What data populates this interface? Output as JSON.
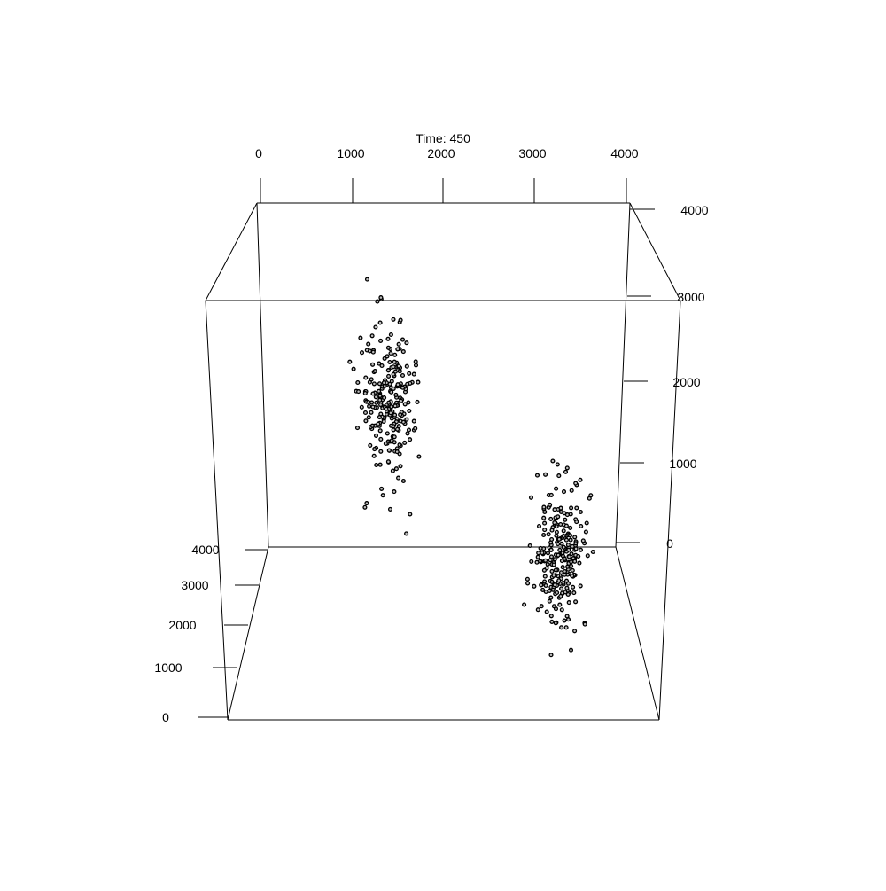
{
  "chart_data": {
    "type": "scatter",
    "title": "Time: 450",
    "xlabel": "",
    "ylabel": "",
    "zlabel": "",
    "axes": {
      "top": {
        "ticks": [
          "0",
          "1000",
          "2000",
          "3000",
          "4000"
        ]
      },
      "right": {
        "ticks": [
          "4000",
          "3000",
          "2000",
          "1000",
          "0"
        ]
      },
      "left": {
        "ticks": [
          "4000",
          "3000",
          "2000",
          "1000",
          "0"
        ]
      }
    },
    "range": {
      "x": [
        0,
        4000
      ],
      "y": [
        0,
        4000
      ],
      "z": [
        0,
        3000
      ]
    },
    "grid": false,
    "legend": "none",
    "point_style": {
      "fill": "#bdbdbd",
      "stroke": "#000000"
    },
    "clusters": [
      {
        "center": {
          "x": 1400,
          "y": 3900,
          "z": 1350
        },
        "spread": {
          "x": 300,
          "y": 550,
          "z": 650
        },
        "count": 250
      },
      {
        "center": {
          "x": 3300,
          "y": 3350,
          "z": 150
        },
        "spread": {
          "x": 300,
          "y": 350,
          "z": 600
        },
        "count": 250
      }
    ]
  }
}
